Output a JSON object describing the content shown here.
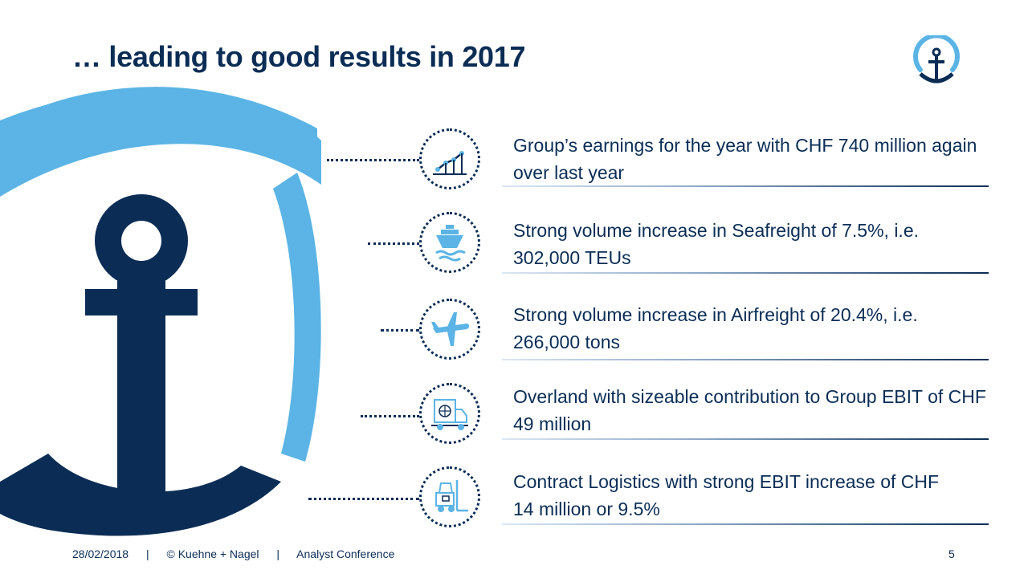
{
  "slide": {
    "title": "… leading to good results in 2017"
  },
  "logo": {
    "icon": "kuehne-nagel-anchor-logo"
  },
  "items": [
    {
      "icon": "line-chart-icon",
      "text": "Group’s earnings for the year with CHF 740 million again over last year"
    },
    {
      "icon": "ship-icon",
      "text": "Strong volume increase in Seafreight of 7.5%, i.e. 302,000 TEUs"
    },
    {
      "icon": "airplane-icon",
      "text": "Strong volume increase in Airfreight of 20.4%, i.e. 266,000 tons"
    },
    {
      "icon": "truck-icon",
      "text": "Overland with sizeable contribution to Group EBIT of CHF 49 million"
    },
    {
      "icon": "forklift-icon",
      "text": "Contract Logistics with strong EBIT increase of CHF 14 million or 9.5%"
    }
  ],
  "footer": {
    "date": "28/02/2018",
    "company": "© Kuehne + Nagel",
    "event": "Analyst Conference",
    "separator": "|",
    "page_number": "5"
  },
  "colors": {
    "navy": "#0b2d55",
    "light_blue": "#5bb4e5"
  }
}
